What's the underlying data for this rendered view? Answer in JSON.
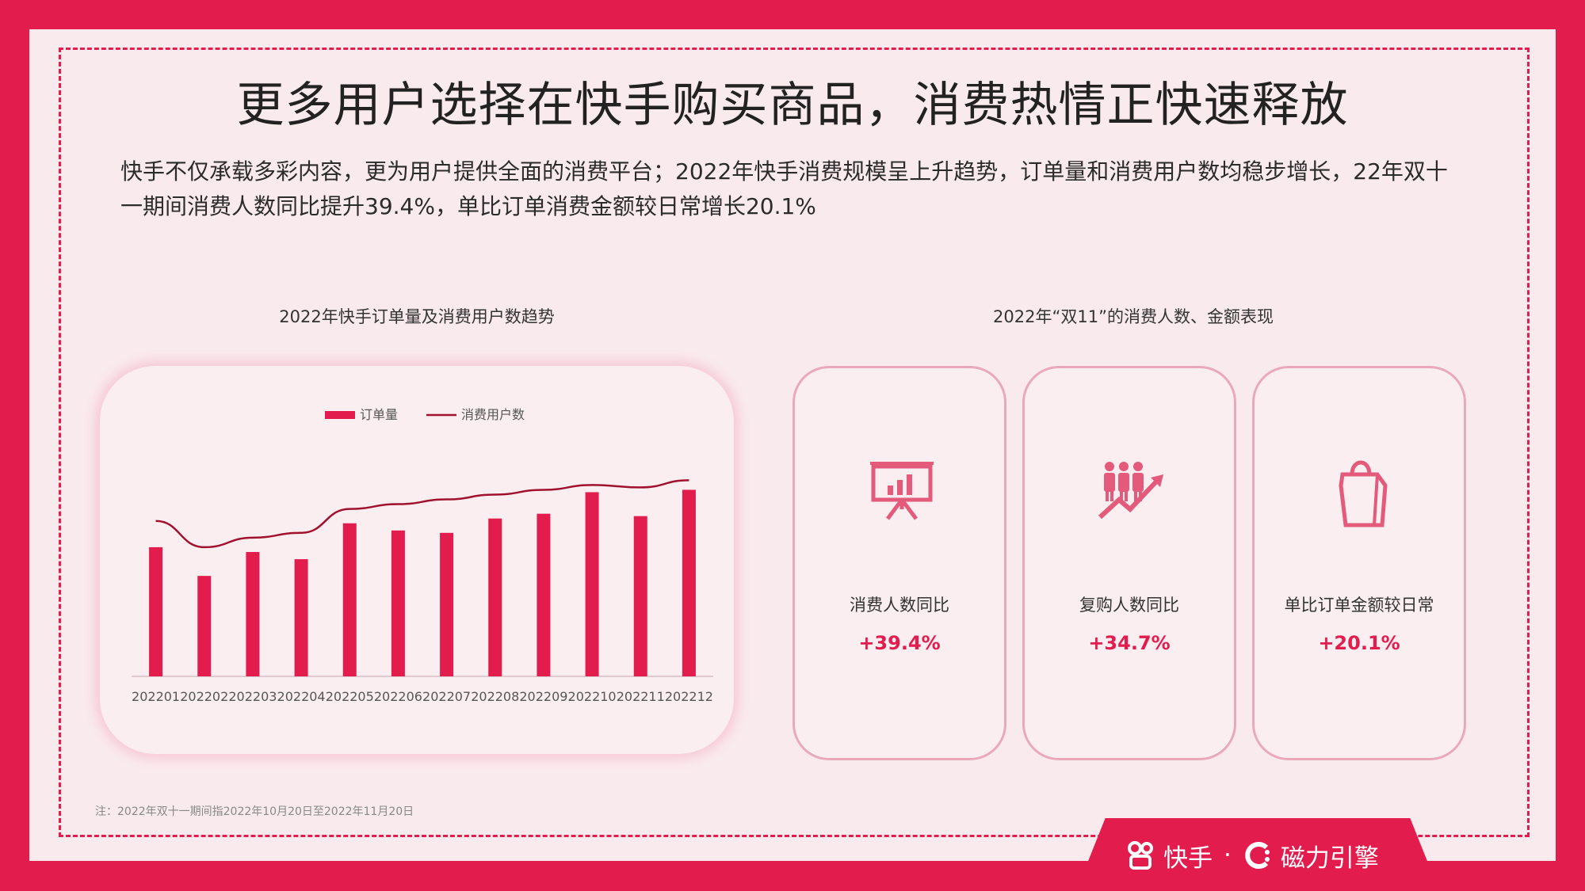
{
  "title": "更多用户选择在快手购买商品，消费热情正快速释放",
  "intro": "快手不仅承载多彩内容，更为用户提供全面的消费平台；2022年快手消费规模呈上升趋势，订单量和消费用户数均稳步增长，22年双十一期间消费人数同比提升39.4%，单比订单消费金额较日常增长20.1%",
  "left_section_title": "2022年快手订单量及消费用户数趋势",
  "right_section_title": "2022年“双11”的消费人数、金额表现",
  "colors": {
    "accent": "#e31c4e",
    "line": "#a0112f",
    "card_border": "#e9a9bb",
    "background": "#f9eaee"
  },
  "chart_data": {
    "type": "bar",
    "categories": [
      "202201",
      "202202",
      "202203",
      "202204",
      "202205",
      "202206",
      "202207",
      "202208",
      "202209",
      "202210",
      "202211",
      "202212"
    ],
    "series": [
      {
        "name": "订单量",
        "type": "bar",
        "values": [
          54,
          42,
          52,
          49,
          64,
          61,
          60,
          66,
          68,
          77,
          67,
          78
        ]
      },
      {
        "name": "消费用户数",
        "type": "line",
        "values": [
          65,
          54,
          58,
          60,
          70,
          72,
          74,
          76,
          78,
          80,
          79,
          82
        ]
      }
    ],
    "legend": [
      "订单量",
      "消费用户数"
    ],
    "legend_position": "top-center",
    "ylim": [
      0,
      100
    ],
    "grid": false,
    "y_axis_visible": false
  },
  "stats": [
    {
      "icon": "presentation-chart-icon",
      "label": "消费人数同比",
      "value": "+39.4%"
    },
    {
      "icon": "people-growth-icon",
      "label": "复购人数同比",
      "value": "+34.7%"
    },
    {
      "icon": "shopping-bag-icon",
      "label": "单比订单金额较日常",
      "value": "+20.1%"
    }
  ],
  "note": "注：2022年双十一期间指2022年10月20日至2022年11月20日",
  "brand": {
    "name1": "快手",
    "separator": "·",
    "name2": "磁力引擎"
  }
}
